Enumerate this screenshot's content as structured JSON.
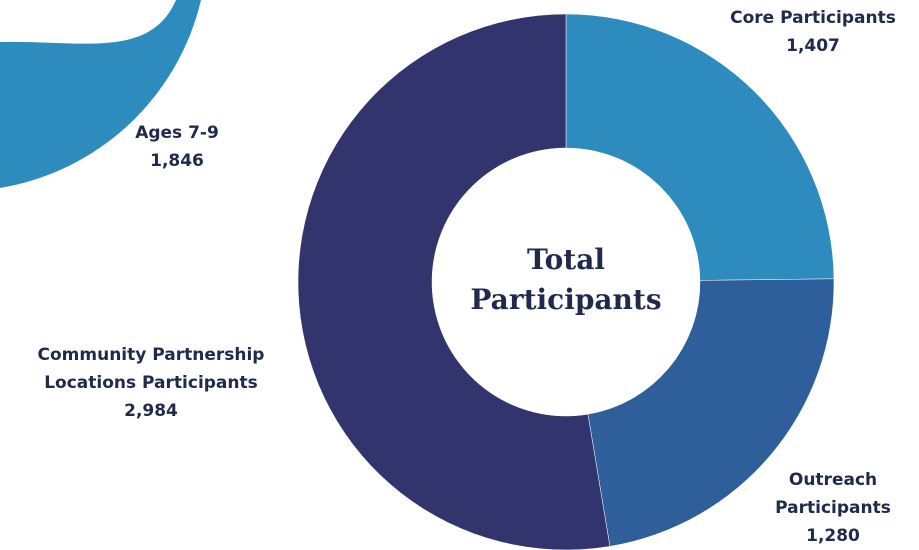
{
  "chart_data": [
    {
      "type": "donut",
      "title": "Total Participants",
      "categories": [
        "Core Participants",
        "Outreach Participants",
        "Community Partnership Locations Participants"
      ],
      "values": [
        1407,
        1280,
        2984
      ],
      "value_labels": [
        "1,407",
        "1,280",
        "2,984"
      ],
      "colors": [
        "#2e8bbd",
        "#2f5f9a",
        "#32346d"
      ]
    },
    {
      "type": "donut",
      "categories": [
        "Ages 7-9"
      ],
      "values": [
        1846
      ],
      "value_labels": [
        "1,846"
      ],
      "colors": [
        "#2e8bbd"
      ]
    }
  ]
}
